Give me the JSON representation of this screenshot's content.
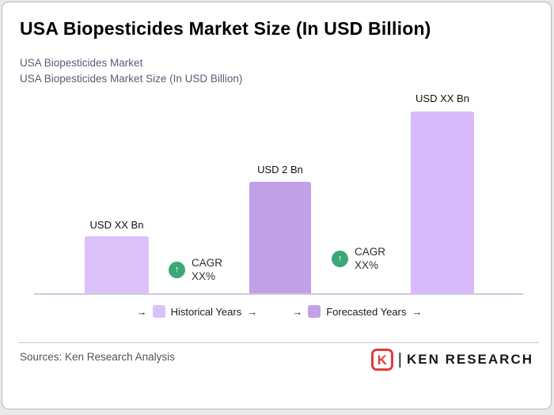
{
  "header": {
    "title": "USA Biopesticides Market Size (In USD Billion)",
    "subtitle1": "USA Biopesticides Market",
    "subtitle2": "USA Biopesticides Market Size (In USD Billion)"
  },
  "chart_data": {
    "type": "bar",
    "title": "USA Biopesticides Market Size (In USD Billion)",
    "bar_labels": [
      "USD XX Bn",
      "USD 2 Bn",
      "USD XX Bn"
    ],
    "values_usd_bn": [
      "XX",
      "2",
      "XX"
    ],
    "relative_heights": [
      1,
      2,
      3.2
    ],
    "bar_colors": [
      "#dcc0fa",
      "#c1a0e8",
      "#d6baf9"
    ],
    "annotations": [
      {
        "line1": "CAGR",
        "line2": "XX%"
      },
      {
        "line1": "CAGR",
        "line2": "XX%"
      }
    ],
    "grid": false,
    "y_axis_labels": false,
    "x_axis_line": true,
    "legend_position": "bottom-center"
  },
  "badges": {
    "up_arrow": "↑",
    "color": "#3ba776"
  },
  "legend": {
    "arrow": "→",
    "items": [
      {
        "label": "Historical Years",
        "color": "#dcc0fa"
      },
      {
        "label": "Forecasted Years",
        "color": "#c1a0e8"
      }
    ]
  },
  "footer": {
    "sources": "Sources: Ken Research Analysis",
    "logo_mark": "K",
    "logo_separator": "|",
    "logo_text": "KEN RESEARCH",
    "logo_color": "#e23b3f"
  }
}
